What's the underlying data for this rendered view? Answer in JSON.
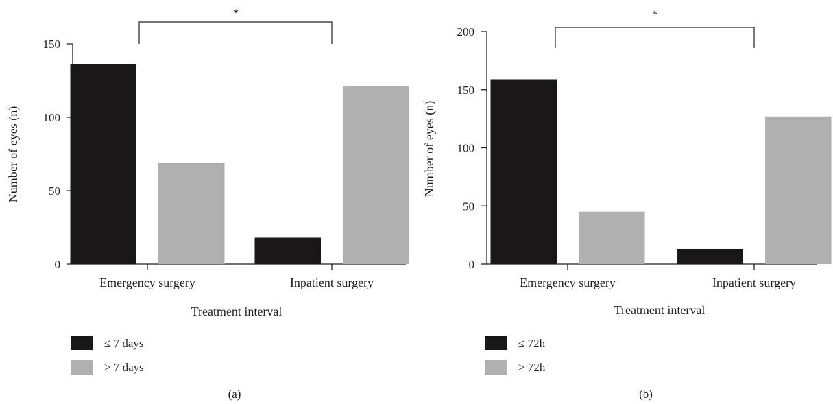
{
  "chart_data": [
    {
      "type": "bar",
      "panel_label": "(a)",
      "categories": [
        "Emergency surgery",
        "Inpatient surgery"
      ],
      "series": [
        {
          "name": "≤ 7 days",
          "color": "#1a1718",
          "values": [
            136,
            18
          ]
        },
        {
          "name": "> 7 days",
          "color": "#b0afb0",
          "values": [
            69,
            121
          ]
        }
      ],
      "xlabel": "Treatment interval",
      "ylabel": "Number of eyes (n)",
      "ylim": [
        0,
        150
      ],
      "yticks": [
        0,
        50,
        100,
        150
      ],
      "significance": {
        "symbol": "*",
        "between": [
          "Emergency surgery",
          "Inpatient surgery"
        ]
      },
      "legend_position": "bottom-left",
      "grid": false
    },
    {
      "type": "bar",
      "panel_label": "(b)",
      "categories": [
        "Emergency surgery",
        "Inpatient surgery"
      ],
      "series": [
        {
          "name": "≤ 72h",
          "color": "#1a1718",
          "values": [
            159,
            13
          ]
        },
        {
          "name": "> 72h",
          "color": "#b0afb0",
          "values": [
            45,
            127
          ]
        }
      ],
      "xlabel": "Treatment interval",
      "ylabel": "Number of eyes (n)",
      "ylim": [
        0,
        200
      ],
      "yticks": [
        0,
        50,
        100,
        150,
        200
      ],
      "significance": {
        "symbol": "*",
        "between": [
          "Emergency surgery",
          "Inpatient surgery"
        ]
      },
      "legend_position": "bottom-left",
      "grid": false
    }
  ]
}
